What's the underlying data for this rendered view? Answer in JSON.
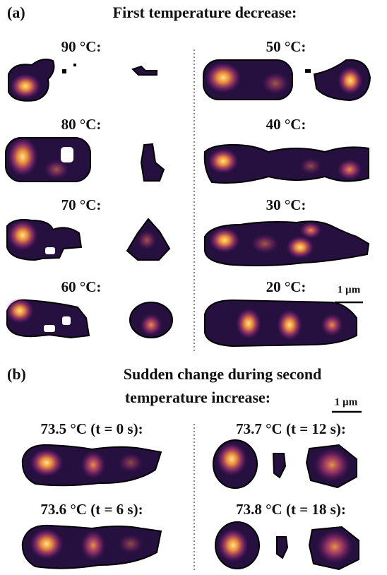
{
  "panel_a": {
    "label": "(a)",
    "title": "First temperature decrease:",
    "images": [
      {
        "label": "90 °C:"
      },
      {
        "label": "50 °C:"
      },
      {
        "label": "80 °C:"
      },
      {
        "label": "40 °C:"
      },
      {
        "label": "70 °C:"
      },
      {
        "label": "30 °C:"
      },
      {
        "label": "60 °C:"
      },
      {
        "label": "20 °C:"
      }
    ],
    "scale_bar": "1 µm"
  },
  "panel_b": {
    "label": "(b)",
    "title_lines": [
      "Sudden change during second",
      "temperature increase:"
    ],
    "scale_bar": "1 µm",
    "images": [
      {
        "label": "73.5 °C (t = 0 s):"
      },
      {
        "label": "73.7 °C (t = 12 s):"
      },
      {
        "label": "73.6 °C (t = 6 s):"
      },
      {
        "label": "73.8 °C (t = 18 s):"
      }
    ]
  }
}
